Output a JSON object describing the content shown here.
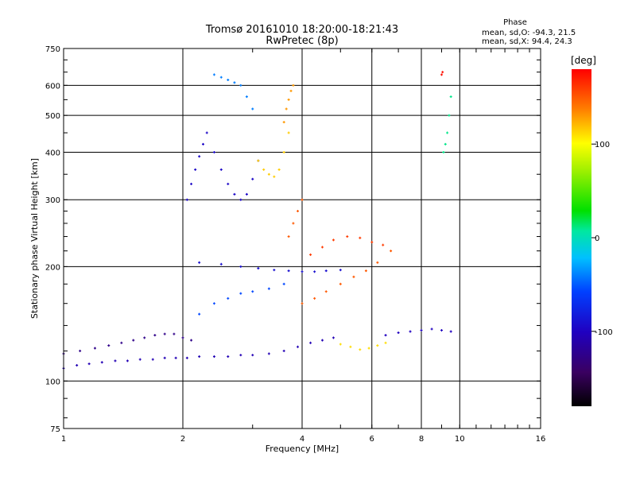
{
  "chart_data": {
    "type": "scatter",
    "title": "Tromsø 20161010 18:20:00-18:21:43",
    "subtitle": "RwPretec (8p)",
    "xlabel": "Frequency [MHz]",
    "ylabel": "Stationary phase Virtual Height [km]",
    "x_scale": "log",
    "y_scale": "log",
    "xlim": [
      1,
      16
    ],
    "ylim": [
      75,
      750
    ],
    "x_ticks": [
      1,
      2,
      4,
      6,
      8,
      10,
      16
    ],
    "x_tick_labels": [
      "1",
      "2",
      "4",
      "6",
      "8",
      "10",
      "16"
    ],
    "y_ticks": [
      75,
      100,
      200,
      300,
      400,
      500,
      600,
      750
    ],
    "y_tick_labels": [
      "75",
      "100",
      "200",
      "300",
      "400",
      "500",
      "600",
      "750"
    ],
    "grid": true,
    "phase_box": {
      "title": "Phase",
      "line_o": "mean, sd,O: -94.3, 21.5",
      "line_x": "mean, sd,X:  94.4, 24.3"
    },
    "colorbar": {
      "label": "[deg]",
      "range": [
        -180,
        180
      ],
      "ticks": [
        100,
        0,
        -100
      ],
      "tick_labels": [
        "100",
        "0",
        "-100"
      ]
    },
    "series": [
      {
        "x": [
          1.0,
          1.08,
          1.16,
          1.25,
          1.35,
          1.45,
          1.56,
          1.68,
          1.8,
          1.92,
          2.05,
          2.2,
          2.4,
          2.6,
          2.8,
          3.0,
          3.3,
          3.6,
          3.9,
          4.2,
          4.5,
          4.8
        ],
        "y": [
          108,
          110,
          111,
          112,
          113,
          113,
          114,
          114,
          115,
          115,
          115,
          116,
          116,
          116,
          117,
          117,
          118,
          120,
          123,
          126,
          128,
          130
        ],
        "phase": -105
      },
      {
        "x": [
          1.0,
          1.1,
          1.2,
          1.3,
          1.4,
          1.5,
          1.6,
          1.7,
          1.8,
          1.9,
          2.0,
          2.1
        ],
        "y": [
          118,
          120,
          122,
          124,
          126,
          128,
          130,
          132,
          133,
          133,
          130,
          128
        ],
        "phase": -125
      },
      {
        "x": [
          2.05,
          2.1,
          2.15,
          2.2,
          2.25,
          2.3,
          2.4,
          2.5,
          2.6,
          2.7,
          2.8,
          2.9,
          3.0,
          3.1
        ],
        "y": [
          300,
          330,
          360,
          390,
          420,
          450,
          400,
          360,
          330,
          310,
          300,
          310,
          340,
          380
        ],
        "phase": -95
      },
      {
        "x": [
          2.4,
          2.5,
          2.6,
          2.7,
          2.8,
          2.9,
          3.0
        ],
        "y": [
          640,
          630,
          620,
          610,
          600,
          560,
          520
        ],
        "phase": -40
      },
      {
        "x": [
          3.1,
          3.2,
          3.3,
          3.4,
          3.5,
          3.6,
          3.7
        ],
        "y": [
          380,
          360,
          350,
          345,
          360,
          400,
          450
        ],
        "phase": 115
      },
      {
        "x": [
          3.6,
          3.65,
          3.7,
          3.75,
          3.8
        ],
        "y": [
          480,
          520,
          550,
          580,
          600
        ],
        "phase": 130
      },
      {
        "x": [
          2.2,
          2.5,
          2.8,
          3.1,
          3.4,
          3.7,
          4.0,
          4.3,
          4.6,
          5.0
        ],
        "y": [
          205,
          203,
          200,
          198,
          196,
          195,
          194,
          194,
          195,
          196
        ],
        "phase": -90
      },
      {
        "x": [
          2.2,
          2.4,
          2.6,
          2.8,
          3.0,
          3.3,
          3.6
        ],
        "y": [
          150,
          160,
          165,
          170,
          172,
          175,
          180
        ],
        "phase": -55
      },
      {
        "x": [
          4.0,
          4.3,
          4.6,
          5.0,
          5.4,
          5.8,
          6.2,
          6.7
        ],
        "y": [
          160,
          165,
          172,
          180,
          188,
          195,
          205,
          220
        ],
        "phase": 150
      },
      {
        "x": [
          4.2,
          4.5,
          4.8,
          5.2,
          5.6,
          6.0,
          6.4
        ],
        "y": [
          215,
          225,
          235,
          240,
          238,
          232,
          228
        ],
        "phase": 160
      },
      {
        "x": [
          3.7,
          3.8,
          3.9,
          4.0
        ],
        "y": [
          240,
          260,
          280,
          300
        ],
        "phase": 150
      },
      {
        "x": [
          5.0,
          5.3,
          5.6,
          5.9,
          6.2,
          6.5
        ],
        "y": [
          125,
          123,
          121,
          122,
          124,
          126
        ],
        "phase": 110
      },
      {
        "x": [
          6.5,
          7.0,
          7.5,
          8.0,
          8.5,
          9.0,
          9.5
        ],
        "y": [
          132,
          134,
          135,
          136,
          137,
          136,
          135
        ],
        "phase": -100
      },
      {
        "x": [
          9.1,
          9.2,
          9.3,
          9.4,
          9.5
        ],
        "y": [
          400,
          420,
          450,
          500,
          560
        ],
        "phase": 10
      },
      {
        "x": [
          9.0,
          9.05
        ],
        "y": [
          640,
          650
        ],
        "phase": 175
      }
    ]
  }
}
